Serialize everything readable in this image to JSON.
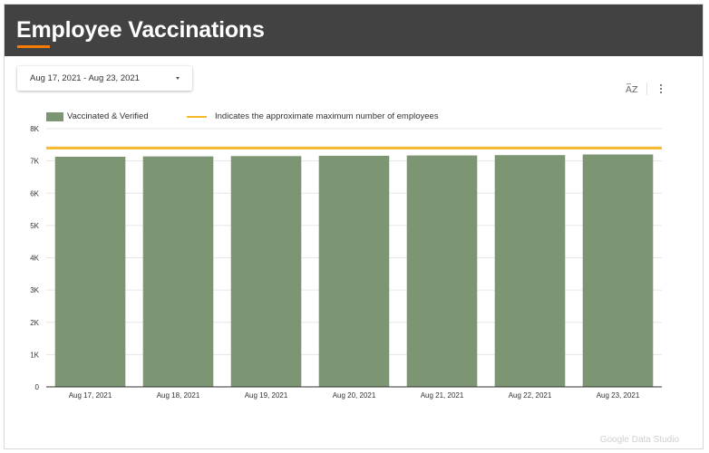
{
  "header": {
    "title": "Employee Vaccinations"
  },
  "date_picker": {
    "label": "Aug 17, 2021 - Aug 23, 2021"
  },
  "toolbar": {
    "sort_icon": "sort-az-icon",
    "menu_icon": "kebab-menu-icon"
  },
  "watermark": "Google Data Studio",
  "colors": {
    "header_bg": "#424242",
    "accent": "#f57c00",
    "bar": "#7c9673",
    "reference_line": "#f6b92b"
  },
  "chart_data": {
    "type": "bar",
    "title": "",
    "xlabel": "",
    "ylabel": "",
    "categories": [
      "Aug 17, 2021",
      "Aug 18, 2021",
      "Aug 19, 2021",
      "Aug 20, 2021",
      "Aug 21, 2021",
      "Aug 22, 2021",
      "Aug 23, 2021"
    ],
    "series": [
      {
        "name": "Vaccinated & Verified",
        "values": [
          7130,
          7140,
          7150,
          7160,
          7170,
          7180,
          7200
        ]
      }
    ],
    "reference_line": {
      "label": "Indicates the approximate maximum number of employees",
      "value": 7400
    },
    "ylim": [
      0,
      8000
    ],
    "yticks": [
      0,
      1000,
      2000,
      3000,
      4000,
      5000,
      6000,
      7000,
      8000
    ],
    "ytick_labels": [
      "0",
      "1K",
      "2K",
      "3K",
      "4K",
      "5K",
      "6K",
      "7K",
      "8K"
    ],
    "grid": true,
    "legend_position": "top-left"
  }
}
